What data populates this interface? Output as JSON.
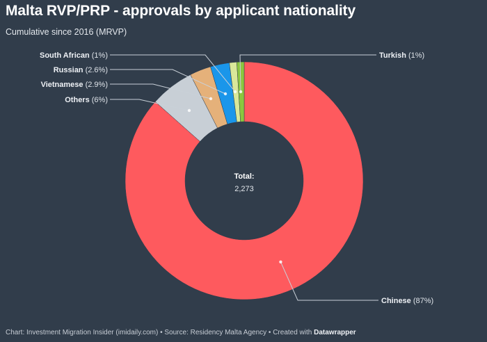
{
  "header": {
    "title": "Malta RVP/PRP - approvals by applicant nationality",
    "subtitle": "Cumulative since 2016 (MRVP)"
  },
  "center": {
    "title": "Total:",
    "value": "2,273"
  },
  "footer": {
    "chart_credit": "Chart: Investment Migration Insider (imidaily.com)",
    "separator": " • ",
    "source": "Source: Residency Malta Agency",
    "created_with": "Created with ",
    "tool": "Datawrapper"
  },
  "colors": {
    "background": "#313d4b",
    "leader_line": "#c9d0d8"
  },
  "chart_data": {
    "type": "pie",
    "variant": "donut",
    "title": "Malta RVP/PRP - approvals by applicant nationality",
    "subtitle": "Cumulative since 2016 (MRVP)",
    "total_label": "Total:",
    "total": 2273,
    "categories": [
      "Chinese",
      "Others",
      "Vietnamese",
      "Russian",
      "South African",
      "Turkish"
    ],
    "values": [
      87,
      6,
      2.9,
      2.6,
      1,
      1
    ],
    "unit": "%",
    "colors": [
      "#fe5a5e",
      "#c8cfd6",
      "#e5b17a",
      "#1a96ea",
      "#d9e89a",
      "#8cc63f"
    ],
    "labels": [
      {
        "name": "Chinese",
        "pct": "(87%)",
        "side": "right"
      },
      {
        "name": "Others",
        "pct": "(6%)",
        "side": "left"
      },
      {
        "name": "Vietnamese",
        "pct": "(2.9%)",
        "side": "left"
      },
      {
        "name": "Russian",
        "pct": "(2.6%)",
        "side": "left"
      },
      {
        "name": "South African",
        "pct": "(1%)",
        "side": "left"
      },
      {
        "name": "Turkish",
        "pct": "(1%)",
        "side": "right"
      }
    ],
    "start_angle_deg": 0,
    "direction": "clockwise",
    "legend": "direct labels with leader lines"
  }
}
